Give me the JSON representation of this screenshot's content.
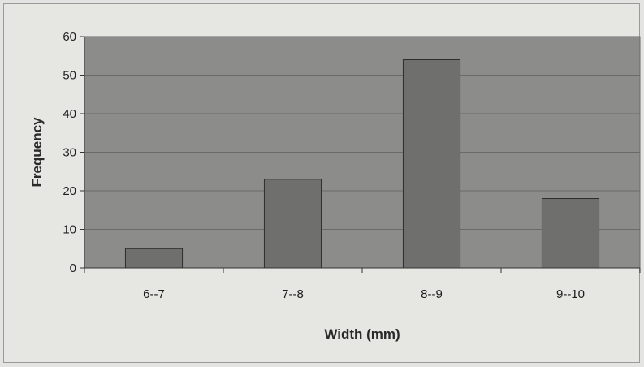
{
  "chart_data": {
    "type": "bar",
    "title": "",
    "xlabel": "Width (mm)",
    "ylabel": "Frequency",
    "categories": [
      "6--7",
      "7--8",
      "8--9",
      "9--10"
    ],
    "values": [
      5,
      23,
      54,
      18
    ],
    "ylim": [
      0,
      60
    ],
    "yticks": [
      "0",
      "10",
      "20",
      "30",
      "40",
      "50",
      "60"
    ],
    "grid": true,
    "legend": "none",
    "colors": {
      "plot_background": "#8c8c8a",
      "bar_fill": "#6f6f6d",
      "bar_stroke": "#2e2e2e",
      "gridline": "#6a6a68",
      "chart_background": "#e6e6e3"
    }
  }
}
